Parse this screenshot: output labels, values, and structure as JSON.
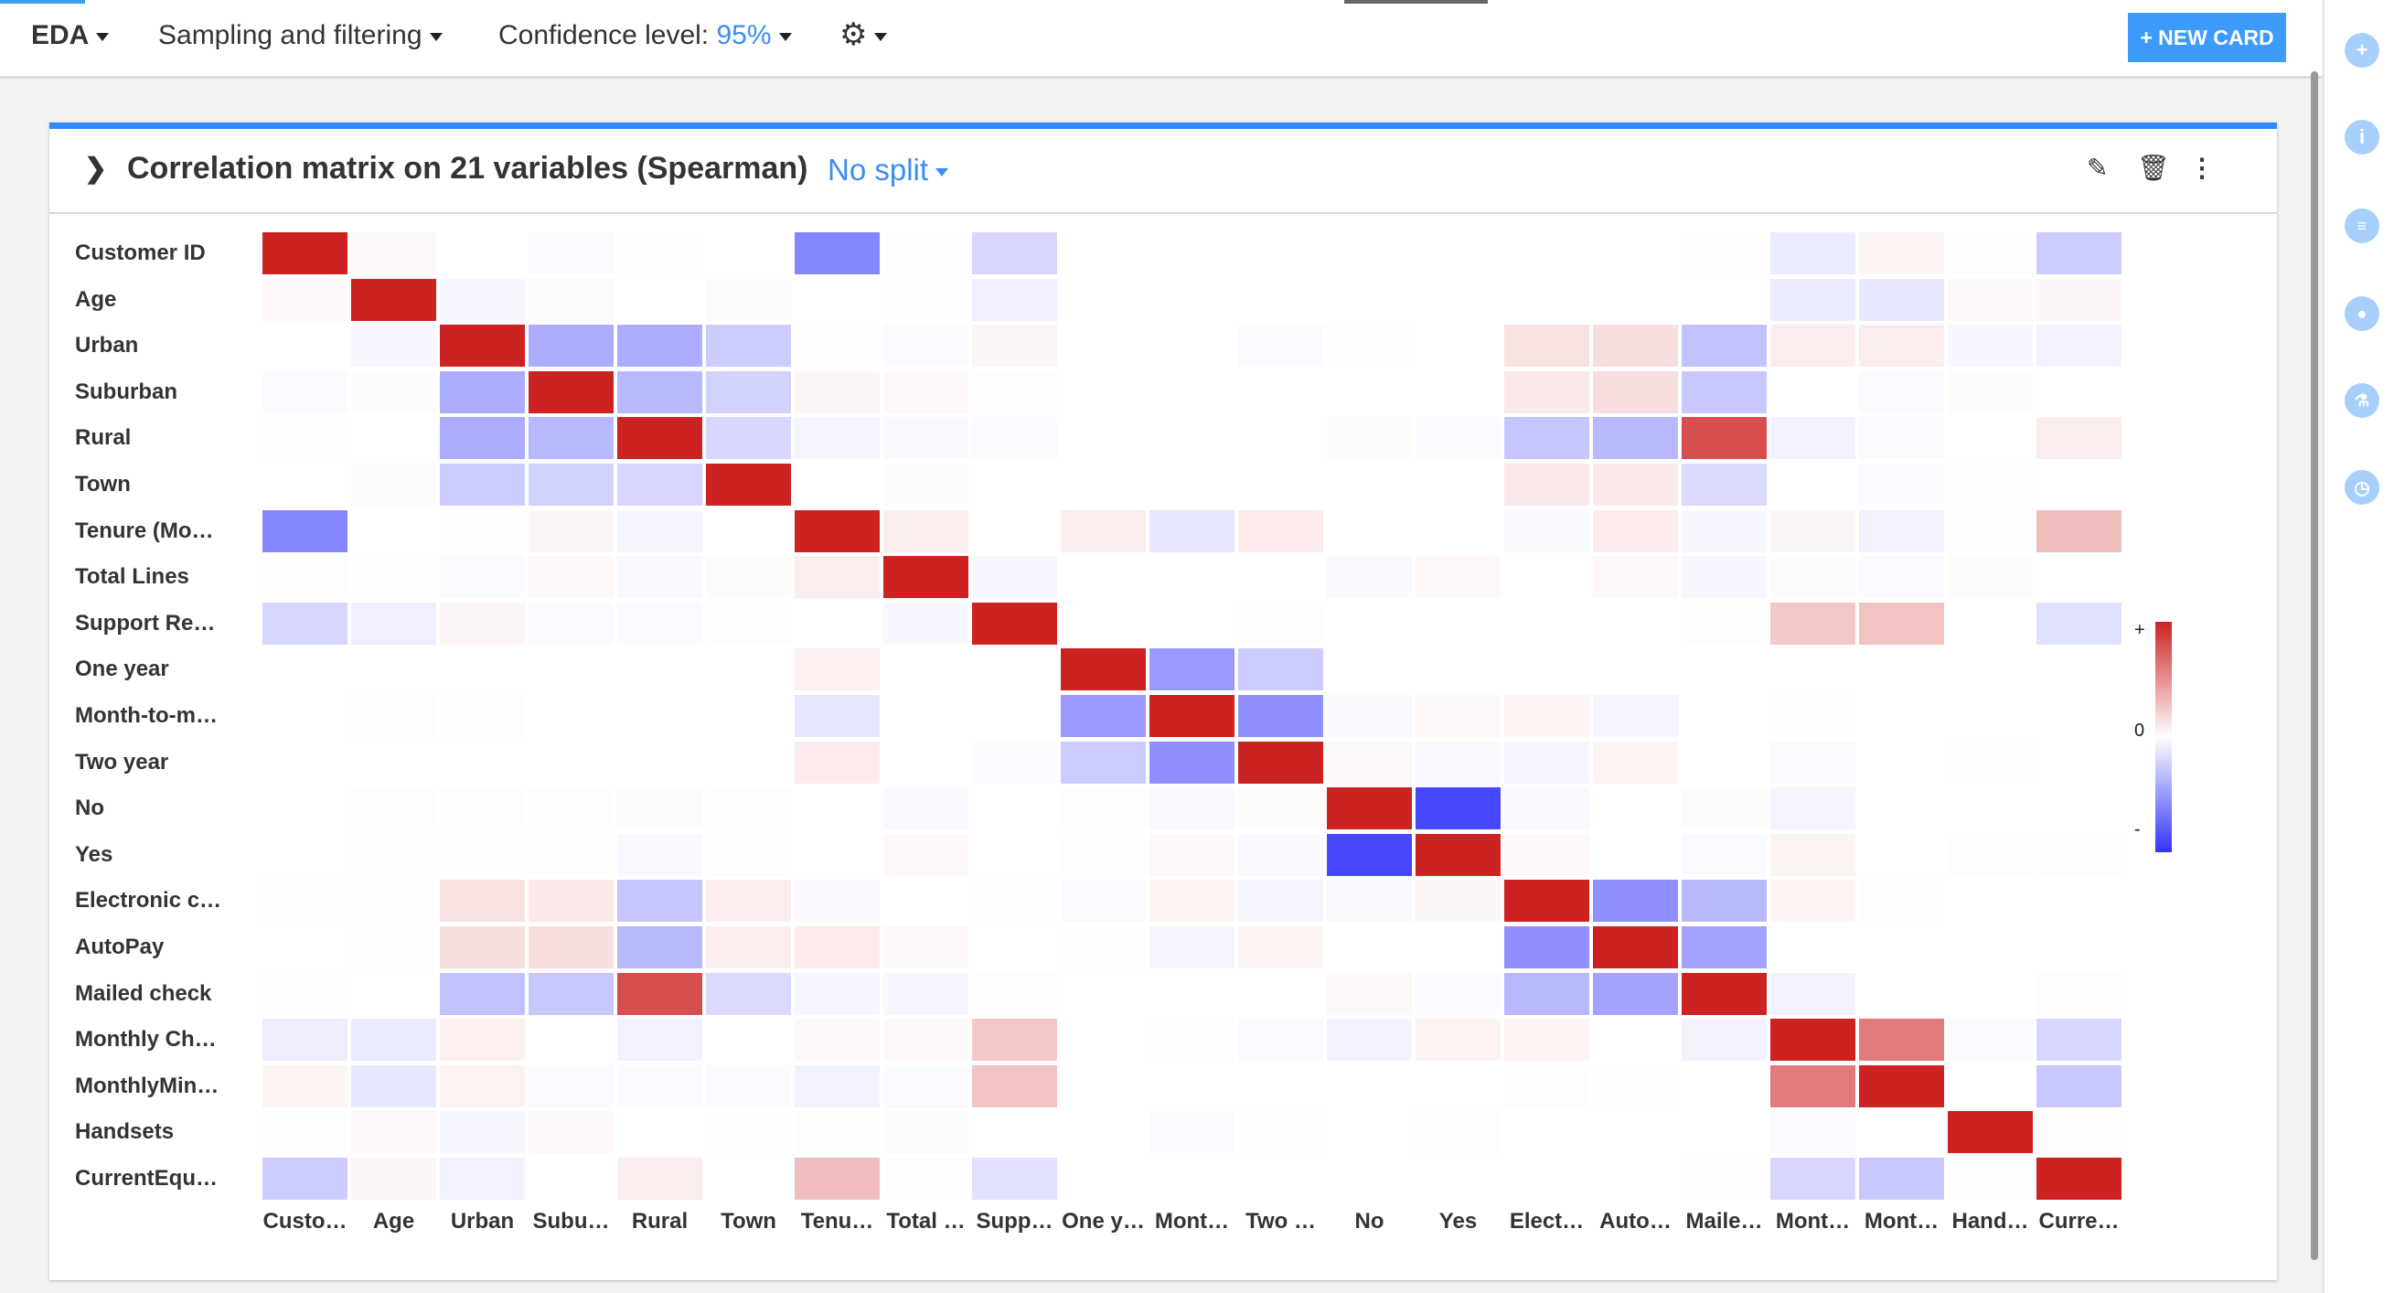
{
  "topbar": {
    "eda": "EDA",
    "sampling": "Sampling and filtering",
    "confidence_label": "Confidence level: ",
    "confidence_value": "95%",
    "new_card": "+ NEW CARD"
  },
  "card": {
    "title": "Correlation matrix on 21 variables (Spearman)",
    "split": "No split"
  },
  "rightbar": {
    "icons": [
      "plus-icon",
      "info-icon",
      "list-icon",
      "comment-icon",
      "microscope-icon",
      "clock-icon"
    ]
  },
  "chart_data": {
    "type": "heatmap",
    "row_labels": [
      "Customer ID",
      "Age",
      "Urban",
      "Suburban",
      "Rural",
      "Town",
      "Tenure (Mo…",
      "Total Lines",
      "Support Re…",
      "One year",
      "Month-to-m…",
      "Two year",
      "No",
      "Yes",
      "Electronic c…",
      "AutoPay",
      "Mailed check",
      "Monthly Ch…",
      "MonthlyMin…",
      "Handsets",
      "CurrentEqu…"
    ],
    "col_labels": [
      "Custo…",
      "Age",
      "Urban",
      "Subu…",
      "Rural",
      "Town",
      "Tenu…",
      "Total …",
      "Supp…",
      "One y…",
      "Mont…",
      "Two …",
      "No",
      "Yes",
      "Elect…",
      "Auto…",
      "Maile…",
      "Mont…",
      "Mont…",
      "Hand…",
      "Curre…"
    ],
    "colorscale": {
      "positive": "#cd2222",
      "zero": "#ffffff",
      "negative": "#3333ff",
      "labels": [
        "+",
        "0",
        "-"
      ]
    },
    "range": [
      -1,
      1
    ],
    "values": [
      [
        1,
        0.03,
        0,
        -0.02,
        0.01,
        0,
        -0.6,
        -0.01,
        -0.2,
        0,
        0,
        0,
        0,
        0,
        0,
        0,
        0.01,
        -0.1,
        0.05,
        0.01,
        -0.25
      ],
      [
        0.03,
        1,
        -0.04,
        0.02,
        0,
        0.02,
        0,
        0.01,
        -0.08,
        0,
        0,
        0,
        0,
        0,
        0,
        0,
        0,
        -0.1,
        -0.12,
        0.03,
        0.04
      ],
      [
        0,
        -0.04,
        1,
        -0.4,
        -0.4,
        -0.25,
        0.01,
        -0.02,
        0.04,
        0,
        0,
        -0.02,
        0.01,
        0,
        0.13,
        0.15,
        -0.3,
        0.08,
        0.08,
        -0.04,
        -0.06
      ],
      [
        -0.02,
        0.02,
        -0.4,
        1,
        -0.35,
        -0.22,
        0.04,
        0.03,
        -0.01,
        0,
        0,
        0,
        0,
        0,
        0.1,
        0.15,
        -0.27,
        0,
        -0.02,
        0.02,
        0
      ],
      [
        0.01,
        0,
        -0.4,
        -0.35,
        1,
        -0.2,
        -0.05,
        -0.03,
        -0.02,
        0,
        0,
        0,
        0.02,
        -0.02,
        -0.28,
        -0.35,
        0.8,
        -0.07,
        -0.02,
        0,
        0.08
      ],
      [
        0,
        0.02,
        -0.25,
        -0.22,
        -0.2,
        1,
        0,
        0.02,
        0,
        0,
        0,
        0,
        0,
        0,
        0.1,
        0.1,
        -0.18,
        0,
        -0.02,
        0.01,
        0
      ],
      [
        -0.6,
        0,
        0.01,
        0.04,
        -0.05,
        0,
        1,
        0.08,
        0,
        0.08,
        -0.12,
        0.09,
        0,
        0,
        -0.03,
        0.09,
        -0.04,
        0.04,
        -0.07,
        -0.01,
        0.3
      ],
      [
        -0.01,
        0.01,
        -0.02,
        0.03,
        -0.03,
        0.02,
        0.08,
        1,
        -0.04,
        0,
        0,
        0,
        -0.03,
        0.03,
        0,
        0.03,
        -0.04,
        0.02,
        -0.02,
        0.02,
        0
      ],
      [
        -0.2,
        -0.08,
        0.04,
        -0.02,
        -0.02,
        -0.01,
        0,
        -0.04,
        1,
        0,
        0,
        -0.01,
        0,
        0,
        0,
        0,
        -0.01,
        0.25,
        0.27,
        0,
        -0.15
      ],
      [
        0,
        0,
        0,
        0,
        0,
        0,
        0.07,
        0,
        0,
        1,
        -0.5,
        -0.25,
        0,
        0,
        0,
        0,
        0,
        0,
        0,
        0,
        0
      ],
      [
        0,
        -0.01,
        -0.01,
        0,
        0,
        0,
        -0.12,
        0,
        0,
        -0.5,
        1,
        -0.55,
        -0.03,
        0.03,
        0.05,
        -0.05,
        0,
        0.01,
        0,
        0,
        0
      ],
      [
        0,
        0,
        0,
        0,
        0,
        0,
        0.09,
        0,
        -0.02,
        -0.25,
        -0.55,
        1,
        0.03,
        -0.03,
        -0.05,
        0.05,
        0,
        -0.02,
        0,
        0.01,
        0
      ],
      [
        0,
        -0.01,
        -0.01,
        -0.01,
        0.02,
        -0.01,
        0,
        -0.03,
        0,
        -0.01,
        -0.03,
        0.02,
        1,
        -0.9,
        -0.03,
        0,
        0.02,
        -0.05,
        0,
        0,
        0
      ],
      [
        0,
        0.01,
        0.01,
        0.01,
        -0.03,
        0.01,
        0,
        0.03,
        0,
        -0.01,
        0.03,
        -0.03,
        -0.9,
        1,
        0.03,
        0,
        -0.02,
        0.05,
        0,
        -0.01,
        -0.01
      ],
      [
        0.01,
        0.01,
        0.13,
        0.1,
        -0.28,
        0.08,
        -0.03,
        0,
        0.01,
        -0.02,
        0.05,
        -0.05,
        -0.03,
        0.04,
        1,
        -0.55,
        -0.35,
        0.05,
        -0.01,
        0,
        0
      ],
      [
        0,
        0.01,
        0.15,
        0.15,
        -0.35,
        0.08,
        0.09,
        0.03,
        0,
        0.01,
        -0.05,
        0.05,
        0,
        0,
        -0.55,
        1,
        -0.45,
        0,
        0,
        0,
        0
      ],
      [
        0.01,
        0,
        -0.3,
        -0.27,
        0.8,
        -0.18,
        -0.04,
        -0.04,
        -0.01,
        0,
        0,
        0,
        0.03,
        -0.02,
        -0.35,
        -0.45,
        1,
        -0.06,
        0,
        0,
        -0.01
      ],
      [
        -0.09,
        -0.1,
        0.07,
        0,
        -0.07,
        0,
        0.03,
        0.03,
        0.25,
        0,
        0.01,
        -0.02,
        -0.06,
        0.06,
        0.05,
        0,
        -0.06,
        1,
        0.6,
        -0.02,
        -0.2
      ],
      [
        0.05,
        -0.12,
        0.06,
        -0.02,
        -0.02,
        -0.02,
        -0.07,
        -0.02,
        0.27,
        0,
        0,
        0,
        0,
        0,
        -0.01,
        0.01,
        0,
        0.6,
        1,
        0,
        -0.27
      ],
      [
        0.01,
        0.03,
        -0.04,
        0.03,
        0,
        0.01,
        -0.01,
        0.02,
        0,
        0,
        -0.02,
        0.01,
        0,
        -0.01,
        0,
        0,
        0,
        -0.02,
        0,
        1,
        -0.01
      ],
      [
        -0.25,
        0.04,
        -0.07,
        0,
        0.08,
        0,
        0.3,
        -0.01,
        -0.15,
        0,
        0,
        0,
        0,
        0,
        0,
        0,
        -0.01,
        -0.2,
        -0.27,
        -0.01,
        1
      ]
    ]
  }
}
